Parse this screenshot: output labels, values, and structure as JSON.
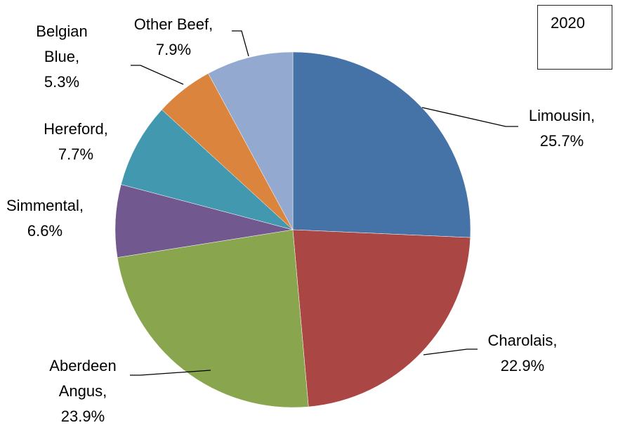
{
  "legend_box": {
    "text": "2020"
  },
  "chart_data": {
    "type": "pie",
    "title": "",
    "slices": [
      {
        "label_lines": [
          "Limousin,",
          "25.7%"
        ],
        "category": "Limousin",
        "value": 25.7,
        "color": "#4572a7"
      },
      {
        "label_lines": [
          "Charolais,",
          "22.9%"
        ],
        "category": "Charolais",
        "value": 22.9,
        "color": "#aa4643"
      },
      {
        "label_lines": [
          "Aberdeen",
          "Angus,",
          "23.9%"
        ],
        "category": "Aberdeen Angus",
        "value": 23.9,
        "color": "#89a54e"
      },
      {
        "label_lines": [
          "Simmental,",
          "6.6%"
        ],
        "category": "Simmental",
        "value": 6.6,
        "color": "#71588f"
      },
      {
        "label_lines": [
          "Hereford,",
          "7.7%"
        ],
        "category": "Hereford",
        "value": 7.7,
        "color": "#4198af"
      },
      {
        "label_lines": [
          "Belgian",
          "Blue,",
          "5.3%"
        ],
        "category": "Belgian Blue",
        "value": 5.3,
        "color": "#db843d"
      },
      {
        "label_lines": [
          "Other Beef,",
          "7.9%"
        ],
        "category": "Other Beef",
        "value": 7.9,
        "color": "#93a9cf"
      }
    ]
  }
}
